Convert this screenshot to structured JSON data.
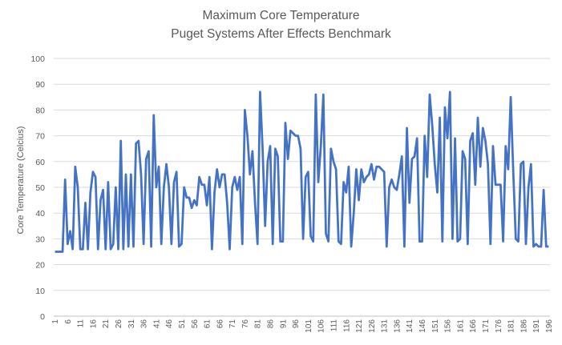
{
  "chart_data": {
    "type": "line",
    "title": "Maximum Core Temperature",
    "subtitle": "Puget Systems After Effects Benchmark",
    "ylabel": "Core Temperature  (Celcius)",
    "xlabel": "",
    "ylim": [
      0,
      100
    ],
    "yticks": [
      0,
      10,
      20,
      30,
      40,
      50,
      60,
      70,
      80,
      90,
      100
    ],
    "xticks": [
      1,
      6,
      11,
      16,
      21,
      26,
      31,
      36,
      41,
      46,
      51,
      56,
      61,
      66,
      71,
      76,
      81,
      86,
      91,
      96,
      101,
      106,
      111,
      116,
      121,
      126,
      131,
      136,
      141,
      146,
      151,
      156,
      161,
      166,
      171,
      176,
      181,
      186,
      191,
      196
    ],
    "grid": true,
    "legend": "none",
    "series": [
      {
        "color": "#4472C4",
        "x_start": 1,
        "values": [
          25,
          25,
          25,
          25,
          53,
          28,
          33,
          26,
          58,
          50,
          26,
          26,
          44,
          26,
          48,
          56,
          54,
          26,
          45,
          49,
          26,
          52,
          26,
          28,
          50,
          26,
          68,
          26,
          55,
          27,
          55,
          27,
          67,
          68,
          55,
          28,
          61,
          64,
          27,
          78,
          50,
          58,
          28,
          50,
          59,
          50,
          28,
          52,
          56,
          27,
          28,
          50,
          46,
          46,
          42,
          45,
          43,
          54,
          51,
          51,
          43,
          54,
          26,
          48,
          57,
          50,
          55,
          55,
          44,
          26,
          50,
          54,
          49,
          54,
          28,
          80,
          70,
          55,
          64,
          44,
          28,
          87,
          65,
          35,
          60,
          66,
          28,
          65,
          62,
          29,
          29,
          75,
          61,
          72,
          71,
          70,
          70,
          65,
          30,
          54,
          56,
          31,
          29,
          86,
          52,
          66,
          86,
          32,
          29,
          65,
          60,
          57,
          29,
          28,
          52,
          48,
          58,
          27,
          40,
          57,
          45,
          57,
          52,
          54,
          55,
          59,
          53,
          58,
          58,
          57,
          56,
          27,
          50,
          53,
          50,
          49,
          55,
          62,
          27,
          73,
          44,
          61,
          62,
          69,
          29,
          29,
          70,
          54,
          86,
          74,
          59,
          48,
          77,
          29,
          81,
          69,
          87,
          30,
          69,
          29,
          30,
          64,
          61,
          28,
          68,
          71,
          51,
          77,
          58,
          73,
          68,
          59,
          28,
          66,
          51,
          51,
          51,
          29,
          66,
          57,
          85,
          56,
          30,
          29,
          59,
          60,
          28,
          50,
          59,
          27,
          28,
          27,
          27,
          49,
          27,
          27
        ]
      }
    ]
  }
}
